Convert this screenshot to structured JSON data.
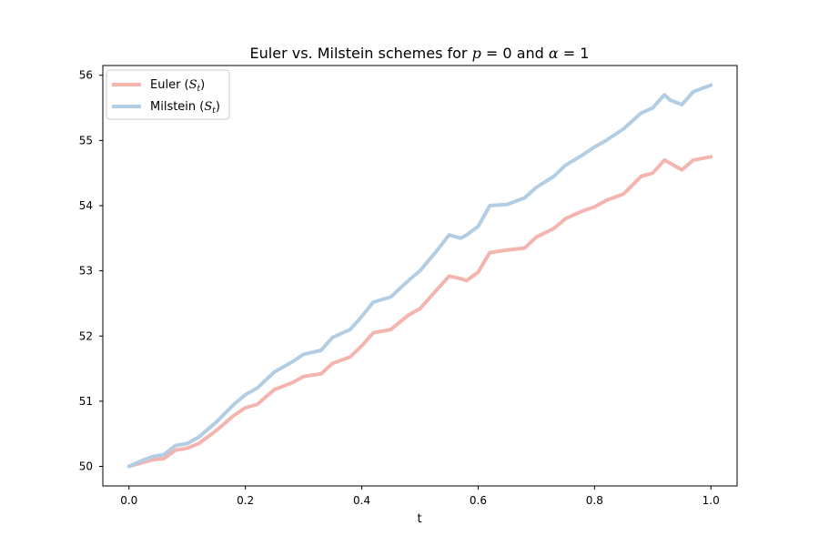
{
  "chart_data": {
    "type": "line",
    "title_parts": [
      "Euler vs. Milstein schemes for ",
      "p",
      " = 0 and ",
      "α",
      " = 1"
    ],
    "xlabel": "t",
    "ylabel": "",
    "xlim": [
      -0.045,
      1.045
    ],
    "ylim": [
      49.7,
      56.15
    ],
    "xticks": [
      0.0,
      0.2,
      0.4,
      0.6,
      0.8,
      1.0
    ],
    "xtick_labels": [
      "0.0",
      "0.2",
      "0.4",
      "0.6",
      "0.8",
      "1.0"
    ],
    "yticks": [
      50,
      51,
      52,
      53,
      54,
      55,
      56
    ],
    "ytick_labels": [
      "50",
      "51",
      "52",
      "53",
      "54",
      "55",
      "56"
    ],
    "grid": false,
    "legend_position": "upper-left",
    "series": [
      {
        "name_main": "Euler (",
        "name_math": "S",
        "name_sub": "t",
        "name_end": ")",
        "color": "#f4b5ae",
        "x": [
          0.0,
          0.02,
          0.04,
          0.06,
          0.08,
          0.1,
          0.12,
          0.15,
          0.18,
          0.2,
          0.22,
          0.25,
          0.28,
          0.3,
          0.33,
          0.35,
          0.38,
          0.4,
          0.42,
          0.45,
          0.48,
          0.5,
          0.53,
          0.55,
          0.57,
          0.58,
          0.6,
          0.62,
          0.65,
          0.68,
          0.7,
          0.73,
          0.75,
          0.78,
          0.8,
          0.82,
          0.85,
          0.88,
          0.9,
          0.92,
          0.93,
          0.95,
          0.97,
          1.0
        ],
        "y": [
          50.0,
          50.05,
          50.1,
          50.12,
          50.25,
          50.28,
          50.35,
          50.55,
          50.78,
          50.9,
          50.95,
          51.18,
          51.28,
          51.38,
          51.42,
          51.58,
          51.68,
          51.85,
          52.05,
          52.1,
          52.32,
          52.42,
          52.72,
          52.92,
          52.88,
          52.85,
          52.98,
          53.28,
          53.32,
          53.35,
          53.52,
          53.65,
          53.8,
          53.92,
          53.98,
          54.08,
          54.18,
          54.45,
          54.5,
          54.7,
          54.65,
          54.55,
          54.7,
          54.75
        ]
      },
      {
        "name_main": "Milstein (",
        "name_math": "S",
        "name_sub": "t",
        "name_end": ")",
        "color": "#b3cde3",
        "x": [
          0.0,
          0.02,
          0.04,
          0.06,
          0.08,
          0.1,
          0.12,
          0.15,
          0.18,
          0.2,
          0.22,
          0.25,
          0.28,
          0.3,
          0.33,
          0.35,
          0.38,
          0.4,
          0.42,
          0.45,
          0.48,
          0.5,
          0.53,
          0.55,
          0.57,
          0.58,
          0.6,
          0.62,
          0.65,
          0.68,
          0.7,
          0.73,
          0.75,
          0.78,
          0.8,
          0.82,
          0.85,
          0.88,
          0.9,
          0.92,
          0.93,
          0.95,
          0.97,
          1.0
        ],
        "y": [
          50.0,
          50.08,
          50.15,
          50.18,
          50.32,
          50.35,
          50.45,
          50.68,
          50.95,
          51.1,
          51.2,
          51.45,
          51.6,
          51.72,
          51.78,
          51.98,
          52.1,
          52.3,
          52.52,
          52.6,
          52.85,
          53.0,
          53.32,
          53.55,
          53.5,
          53.55,
          53.68,
          54.0,
          54.02,
          54.12,
          54.28,
          54.45,
          54.62,
          54.78,
          54.9,
          55.0,
          55.18,
          55.42,
          55.5,
          55.7,
          55.62,
          55.55,
          55.75,
          55.85
        ]
      }
    ]
  }
}
